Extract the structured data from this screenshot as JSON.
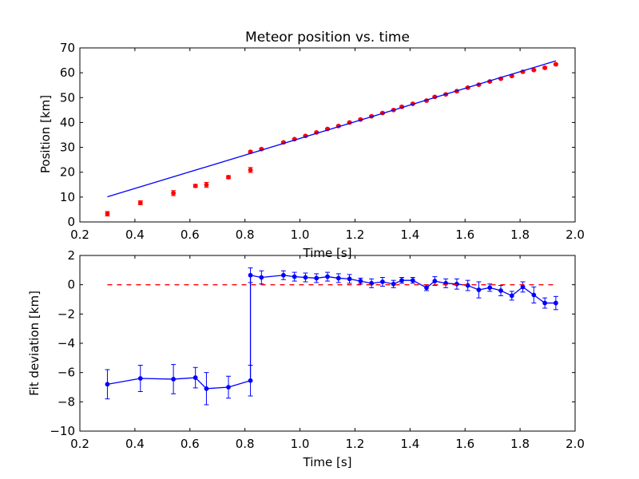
{
  "figure": {
    "background": "#ffffff"
  },
  "chart_data": [
    {
      "type": "scatter",
      "title": "Meteor position vs. time",
      "xlabel": "Time [s]",
      "ylabel": "Position [km]",
      "xlim": [
        0.2,
        2.0
      ],
      "ylim": [
        0,
        70
      ],
      "xticks": [
        "0.2",
        "0.4",
        "0.6",
        "0.8",
        "1.0",
        "1.2",
        "1.4",
        "1.6",
        "1.8",
        "2.0"
      ],
      "yticks": [
        "0",
        "10",
        "20",
        "30",
        "40",
        "50",
        "60",
        "70"
      ],
      "grid": false,
      "series": [
        {
          "kind": "errorbar-points",
          "color": "#ff0000",
          "x": [
            0.3,
            0.42,
            0.54,
            0.62,
            0.66,
            0.74,
            0.82,
            0.82,
            0.86,
            0.94,
            0.98,
            1.02,
            1.06,
            1.1,
            1.14,
            1.18,
            1.22,
            1.26,
            1.3,
            1.34,
            1.37,
            1.41,
            1.46,
            1.49,
            1.53,
            1.57,
            1.61,
            1.65,
            1.69,
            1.73,
            1.77,
            1.81,
            1.85,
            1.89,
            1.93
          ],
          "y": [
            3.3,
            7.7,
            11.6,
            14.5,
            14.9,
            18.0,
            20.9,
            28.2,
            29.3,
            32.0,
            33.3,
            34.6,
            36.0,
            37.4,
            38.6,
            40.0,
            41.2,
            42.5,
            43.8,
            45.0,
            46.3,
            47.5,
            48.8,
            50.3,
            51.3,
            52.6,
            54.0,
            55.2,
            56.5,
            57.6,
            58.7,
            60.4,
            61.1,
            62.0,
            63.4
          ],
          "yerr": [
            0.9,
            0.8,
            1.0,
            0.6,
            1.0,
            0.6,
            1.0,
            0.4,
            0.4,
            0.3,
            0.3,
            0.3,
            0.3,
            0.3,
            0.3,
            0.3,
            0.3,
            0.3,
            0.3,
            0.3,
            0.3,
            0.3,
            0.3,
            0.3,
            0.3,
            0.3,
            0.3,
            0.3,
            0.3,
            0.3,
            0.3,
            0.3,
            0.3,
            0.4,
            0.4
          ]
        },
        {
          "kind": "line",
          "color": "#0000ff",
          "x": [
            0.3,
            1.93
          ],
          "y": [
            10.1,
            64.8
          ]
        }
      ]
    },
    {
      "type": "line",
      "xlabel": "Time [s]",
      "ylabel": "Fit deviation [km]",
      "xlim": [
        0.2,
        2.0
      ],
      "ylim": [
        -10,
        2
      ],
      "xticks": [
        "0.2",
        "0.4",
        "0.6",
        "0.8",
        "1.0",
        "1.2",
        "1.4",
        "1.6",
        "1.8",
        "2.0"
      ],
      "yticks": [
        "−10",
        "−8",
        "−6",
        "−4",
        "−2",
        "0",
        "2"
      ],
      "grid": false,
      "series": [
        {
          "kind": "errorbar-line",
          "color": "#0000ff",
          "x": [
            0.3,
            0.42,
            0.54,
            0.62,
            0.66,
            0.74,
            0.82,
            0.82,
            0.86,
            0.94,
            0.98,
            1.02,
            1.06,
            1.1,
            1.14,
            1.18,
            1.22,
            1.26,
            1.3,
            1.34,
            1.37,
            1.41,
            1.46,
            1.49,
            1.53,
            1.57,
            1.61,
            1.65,
            1.69,
            1.73,
            1.77,
            1.81,
            1.85,
            1.89,
            1.93
          ],
          "y": [
            -6.8,
            -6.4,
            -6.45,
            -6.35,
            -7.1,
            -7.0,
            -6.55,
            0.65,
            0.5,
            0.65,
            0.55,
            0.5,
            0.45,
            0.55,
            0.45,
            0.4,
            0.25,
            0.1,
            0.2,
            0.05,
            0.3,
            0.3,
            -0.2,
            0.25,
            0.1,
            0.05,
            -0.05,
            -0.35,
            -0.2,
            -0.4,
            -0.75,
            -0.15,
            -0.7,
            -1.25,
            -1.25
          ],
          "yerr": [
            1.0,
            0.9,
            1.0,
            0.7,
            1.1,
            0.75,
            1.05,
            0.5,
            0.45,
            0.3,
            0.3,
            0.3,
            0.3,
            0.3,
            0.3,
            0.3,
            0.2,
            0.3,
            0.3,
            0.25,
            0.2,
            0.2,
            0.2,
            0.3,
            0.3,
            0.35,
            0.35,
            0.55,
            0.25,
            0.35,
            0.3,
            0.35,
            0.55,
            0.35,
            0.45
          ]
        },
        {
          "kind": "dashed-line",
          "color": "#ff0000",
          "x": [
            0.3,
            1.93
          ],
          "y": [
            0,
            0
          ]
        }
      ]
    }
  ]
}
